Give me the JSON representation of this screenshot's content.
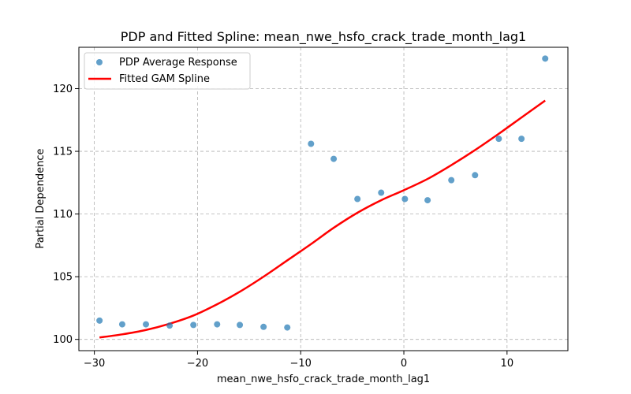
{
  "chart_data": {
    "type": "scatter",
    "title": "PDP and Fitted Spline: mean_nwe_hsfo_crack_trade_month_lag1",
    "xlabel": "mean_nwe_hsfo_crack_trade_month_lag1",
    "ylabel": "Partial Dependence",
    "xlim": [
      -31.5,
      15.9
    ],
    "ylim": [
      99.1,
      123.3
    ],
    "x_ticks": [
      -30,
      -20,
      -10,
      0,
      10
    ],
    "x_tick_labels": [
      "−30",
      "−20",
      "−10",
      "0",
      "10"
    ],
    "y_ticks": [
      100,
      105,
      110,
      115,
      120
    ],
    "y_tick_labels": [
      "100",
      "105",
      "110",
      "115",
      "120"
    ],
    "grid": true,
    "legend_position": "top-left",
    "series": [
      {
        "name": "PDP Average Response",
        "kind": "scatter",
        "color": "#1f77b4",
        "x": [
          -29.5,
          -27.3,
          -25.0,
          -22.7,
          -20.4,
          -18.1,
          -15.9,
          -13.6,
          -11.3,
          -9.0,
          -6.8,
          -4.5,
          -2.2,
          0.1,
          2.3,
          4.6,
          6.9,
          9.2,
          11.4,
          13.7
        ],
        "y": [
          101.5,
          101.2,
          101.2,
          101.1,
          101.15,
          101.2,
          101.15,
          101.0,
          100.95,
          115.6,
          114.4,
          111.2,
          111.7,
          111.2,
          111.1,
          112.7,
          113.1,
          116.0,
          116.0,
          122.4
        ]
      },
      {
        "name": "Fitted GAM Spline",
        "kind": "line",
        "color": "#ff0000",
        "x": [
          -29.5,
          -27.3,
          -25.0,
          -22.7,
          -20.4,
          -18.1,
          -15.9,
          -13.6,
          -11.3,
          -9.0,
          -6.8,
          -4.5,
          -2.2,
          0.0,
          2.3,
          4.6,
          6.9,
          9.2,
          11.4,
          13.7
        ],
        "y": [
          100.15,
          100.4,
          100.75,
          101.25,
          101.9,
          102.8,
          103.8,
          105.0,
          106.3,
          107.6,
          108.9,
          110.1,
          111.1,
          111.9,
          112.8,
          113.9,
          115.1,
          116.4,
          117.7,
          119.05
        ]
      }
    ]
  }
}
